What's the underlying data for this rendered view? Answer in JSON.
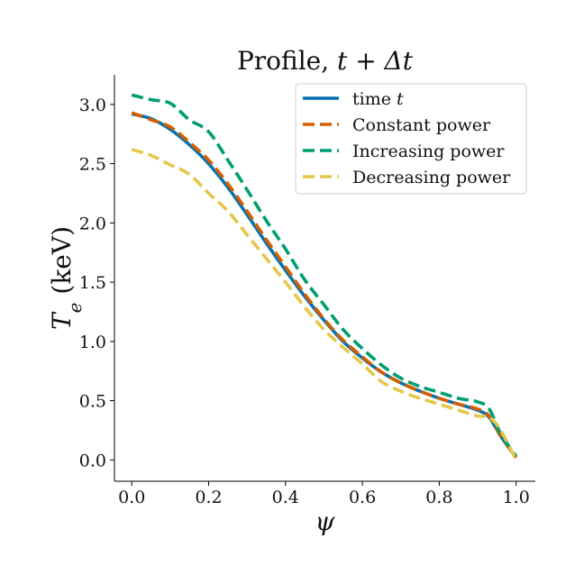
{
  "chart_data": {
    "type": "line",
    "title": {
      "prefix": "Profile, ",
      "math": "t + Δt"
    },
    "xlabel": "ψ",
    "ylabel": {
      "symbol": "T",
      "subscript": "e",
      "unit": " (keV)"
    },
    "xlim": [
      -0.045,
      1.05
    ],
    "ylim": [
      -0.18,
      3.25
    ],
    "x_ticks": [
      0.0,
      0.2,
      0.4,
      0.6,
      0.8,
      1.0
    ],
    "x_tick_labels": [
      "0.0",
      "0.2",
      "0.4",
      "0.6",
      "0.8",
      "1.0"
    ],
    "y_ticks": [
      0.0,
      0.5,
      1.0,
      1.5,
      2.0,
      2.5,
      3.0
    ],
    "y_tick_labels": [
      "0.0",
      "0.5",
      "1.0",
      "1.5",
      "2.0",
      "2.5",
      "3.0"
    ],
    "grid": false,
    "legend_position": "top-right",
    "series": [
      {
        "name": "time t",
        "legend_label": {
          "text": "time ",
          "math": "t"
        },
        "color": "#0072b2",
        "dashed": false,
        "x": [
          0.0,
          0.05,
          0.1,
          0.15,
          0.2,
          0.25,
          0.3,
          0.35,
          0.4,
          0.45,
          0.5,
          0.55,
          0.6,
          0.65,
          0.7,
          0.75,
          0.8,
          0.85,
          0.9,
          0.93,
          0.96,
          1.0
        ],
        "y": [
          2.92,
          2.88,
          2.79,
          2.66,
          2.5,
          2.3,
          2.07,
          1.83,
          1.6,
          1.38,
          1.18,
          1.0,
          0.86,
          0.74,
          0.65,
          0.58,
          0.52,
          0.47,
          0.42,
          0.36,
          0.2,
          0.02
        ]
      },
      {
        "name": "Constant power",
        "legend_label": {
          "text": "Constant power",
          "math": ""
        },
        "color": "#d55e00",
        "dashed": true,
        "x": [
          0.0,
          0.05,
          0.1,
          0.15,
          0.2,
          0.25,
          0.3,
          0.35,
          0.4,
          0.45,
          0.5,
          0.55,
          0.6,
          0.65,
          0.7,
          0.75,
          0.8,
          0.85,
          0.9,
          0.93,
          0.96,
          1.0
        ],
        "y": [
          2.93,
          2.87,
          2.81,
          2.68,
          2.53,
          2.33,
          2.1,
          1.86,
          1.63,
          1.4,
          1.19,
          1.01,
          0.87,
          0.74,
          0.65,
          0.58,
          0.52,
          0.47,
          0.43,
          0.37,
          0.2,
          0.02
        ]
      },
      {
        "name": "Increasing power",
        "legend_label": {
          "text": "Increasing power",
          "math": ""
        },
        "color": "#009e73",
        "dashed": true,
        "x": [
          0.0,
          0.05,
          0.1,
          0.15,
          0.2,
          0.25,
          0.3,
          0.35,
          0.4,
          0.45,
          0.5,
          0.55,
          0.6,
          0.65,
          0.7,
          0.75,
          0.8,
          0.85,
          0.9,
          0.93,
          0.96,
          1.0
        ],
        "y": [
          3.08,
          3.04,
          3.01,
          2.87,
          2.77,
          2.53,
          2.28,
          2.02,
          1.78,
          1.52,
          1.31,
          1.1,
          0.94,
          0.8,
          0.69,
          0.62,
          0.57,
          0.52,
          0.49,
          0.43,
          0.22,
          0.03
        ]
      },
      {
        "name": "Decreasing power",
        "legend_label": {
          "text": "Decreasing power",
          "math": ""
        },
        "color": "#e5c84a",
        "dashed": true,
        "x": [
          0.0,
          0.05,
          0.1,
          0.15,
          0.2,
          0.25,
          0.3,
          0.35,
          0.4,
          0.45,
          0.5,
          0.55,
          0.6,
          0.65,
          0.7,
          0.75,
          0.8,
          0.85,
          0.9,
          0.93,
          0.96,
          1.0
        ],
        "y": [
          2.62,
          2.57,
          2.49,
          2.41,
          2.25,
          2.1,
          1.9,
          1.7,
          1.5,
          1.29,
          1.1,
          0.95,
          0.81,
          0.66,
          0.58,
          0.52,
          0.47,
          0.42,
          0.37,
          0.36,
          0.25,
          0.0
        ]
      }
    ]
  }
}
